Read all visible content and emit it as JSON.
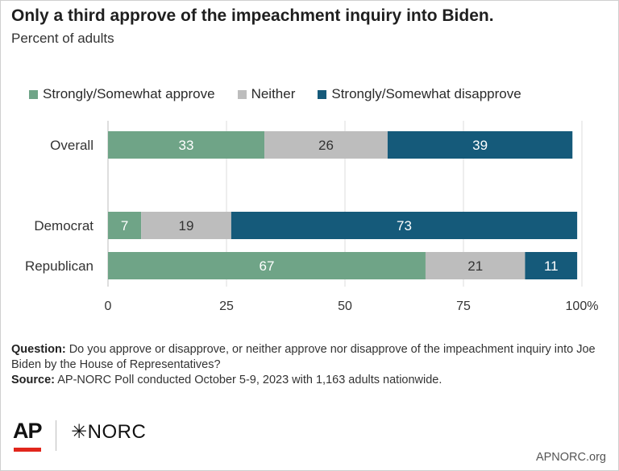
{
  "title": "Only a third approve of the impeachment inquiry into Biden.",
  "subtitle": "Percent of adults",
  "legend": [
    {
      "label": "Strongly/Somewhat approve",
      "color": "#6fa487"
    },
    {
      "label": "Neither",
      "color": "#bdbdbd"
    },
    {
      "label": "Strongly/Somewhat disapprove",
      "color": "#155a7a"
    }
  ],
  "footnote": {
    "question_label": "Question:",
    "question_text": "Do you approve or disapprove, or neither approve nor disapprove of the impeachment inquiry into Joe Biden by the House of Representatives?",
    "source_label": "Source:",
    "source_text": "AP-NORC Poll conducted October 5-9, 2023 with 1,163 adults nationwide."
  },
  "branding": {
    "ap": "AP",
    "norc": "NORC",
    "site": "APNORC.org"
  },
  "chart_data": {
    "type": "bar",
    "orientation": "horizontal",
    "stacked": true,
    "title": "Only a third approve of the impeachment inquiry into Biden.",
    "subtitle": "Percent of adults",
    "categories": [
      "Overall",
      "Democrat",
      "Republican"
    ],
    "series": [
      {
        "name": "Strongly/Somewhat approve",
        "values": [
          33,
          7,
          67
        ],
        "color": "#6fa487"
      },
      {
        "name": "Neither",
        "values": [
          26,
          19,
          21
        ],
        "color": "#bdbdbd"
      },
      {
        "name": "Strongly/Somewhat disapprove",
        "values": [
          39,
          73,
          11
        ],
        "color": "#155a7a"
      }
    ],
    "xlim": [
      0,
      100
    ],
    "xticks": [
      0,
      25,
      50,
      75,
      100
    ],
    "xtick_labels": [
      "0",
      "25",
      "50",
      "75",
      "100%"
    ],
    "grid": true,
    "legend_position": "top"
  }
}
